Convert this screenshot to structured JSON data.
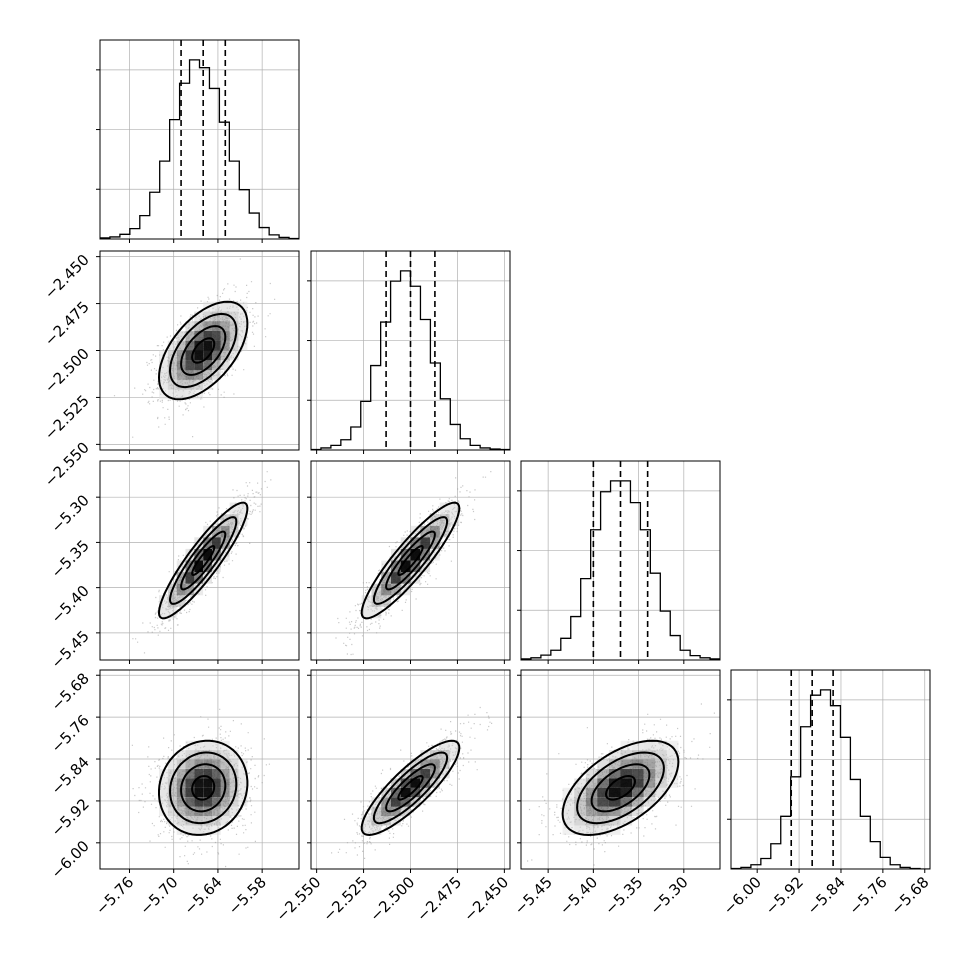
{
  "chart_data": {
    "type": "corner",
    "title": "",
    "parameters": [
      {
        "name": "",
        "mean": -5.66,
        "sd": 0.03,
        "range": [
          -5.8,
          -5.53
        ],
        "ticks": [
          -5.76,
          -5.7,
          -5.64,
          -5.58
        ],
        "tick_labels": [
          "−5.76",
          "−5.70",
          "−5.64",
          "−5.58"
        ],
        "quantiles": [
          -5.69,
          -5.66,
          -5.63
        ]
      },
      {
        "name": "",
        "mean": -2.5,
        "sd": 0.013,
        "range": [
          -2.553,
          -2.447
        ],
        "ticks": [
          -2.55,
          -2.525,
          -2.5,
          -2.475,
          -2.45
        ],
        "tick_labels": [
          "−2.550",
          "−2.525",
          "−2.500",
          "−2.475",
          "−2.450"
        ],
        "quantiles": [
          -2.513,
          -2.5,
          -2.487
        ]
      },
      {
        "name": "",
        "mean": -5.37,
        "sd": 0.032,
        "range": [
          -5.48,
          -5.26
        ],
        "ticks": [
          -5.45,
          -5.4,
          -5.35,
          -5.3
        ],
        "tick_labels": [
          "−5.45",
          "−5.40",
          "−5.35",
          "−5.30"
        ],
        "quantiles": [
          -5.4,
          -5.37,
          -5.34
        ]
      },
      {
        "name": "",
        "mean": -5.895,
        "sd": 0.045,
        "range": [
          -6.05,
          -5.67
        ],
        "ticks": [
          -6.0,
          -5.92,
          -5.84,
          -5.76,
          -5.68
        ],
        "tick_labels": [
          "−6.00",
          "−5.92",
          "−5.84",
          "−5.76",
          "−5.68"
        ],
        "quantiles": [
          -5.935,
          -5.895,
          -5.855
        ]
      }
    ],
    "correlations": [
      [
        1.0,
        0.55,
        0.9,
        0.1
      ],
      [
        0.55,
        1.0,
        0.9,
        0.85
      ],
      [
        0.9,
        0.9,
        1.0,
        0.55
      ],
      [
        0.1,
        0.85,
        0.55,
        1.0
      ]
    ],
    "histogram_counts": [
      [
        2,
        4,
        9,
        20,
        45,
        90,
        150,
        230,
        300,
        345,
        330,
        290,
        225,
        150,
        95,
        50,
        22,
        8,
        3,
        1
      ],
      [
        1,
        4,
        9,
        20,
        45,
        95,
        165,
        250,
        330,
        350,
        320,
        255,
        170,
        100,
        50,
        22,
        9,
        4,
        2,
        1
      ],
      [
        2,
        4,
        9,
        18,
        40,
        80,
        150,
        240,
        310,
        330,
        330,
        290,
        240,
        160,
        90,
        45,
        18,
        8,
        4,
        2
      ],
      [
        1,
        3,
        8,
        20,
        48,
        100,
        175,
        270,
        330,
        340,
        310,
        250,
        170,
        100,
        52,
        22,
        8,
        3,
        1,
        0
      ]
    ],
    "grid": true,
    "contour_levels_sigma": [
      0.5,
      1.0,
      1.5,
      2.0
    ]
  }
}
